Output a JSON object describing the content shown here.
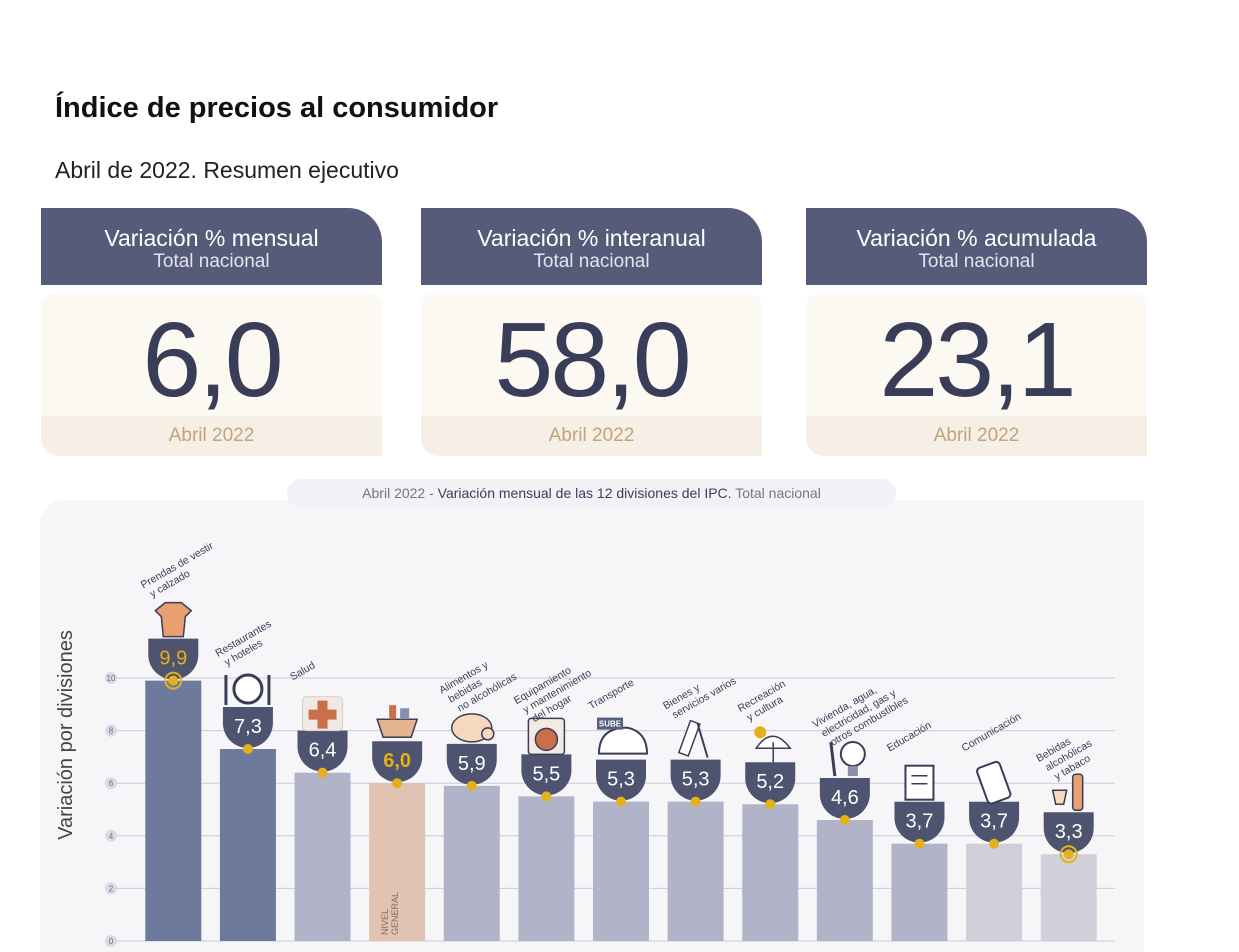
{
  "header": {
    "title": "Índice de precios al consumidor",
    "subtitle": "Abril de 2022. Resumen ejecutivo"
  },
  "cards": [
    {
      "label": "Variación % mensual",
      "sublabel": "Total nacional",
      "value": "6,0",
      "period": "Abril 2022"
    },
    {
      "label": "Variación % interanual",
      "sublabel": "Total nacional",
      "value": "58,0",
      "period": "Abril 2022"
    },
    {
      "label": "Variación % acumulada",
      "sublabel": "Total nacional",
      "value": "23,1",
      "period": "Abril 2022"
    }
  ],
  "chart_caption": {
    "prefix": "Abril 2022 - ",
    "bold": "Variación mensual de las 12 divisiones del IPC.",
    "suffix": " Total nacional"
  },
  "colors": {
    "header_bg": "#555b79",
    "value_text": "#3a3d58",
    "dot": "#e5b11b",
    "bar_dark": "#6e7a9c",
    "bar_mid": "#b1b4c8",
    "bar_light": "#cfd0da",
    "bar_general": "#e0c3b3"
  },
  "chart_data": {
    "type": "bar",
    "ylabel": "Variación por divisiones",
    "ylim": [
      0,
      10
    ],
    "yticks": [
      "0",
      "2",
      "4",
      "6",
      "8",
      "10"
    ],
    "categories": [
      "Prendas de vestir y calzado",
      "Restaurantes y hoteles",
      "Salud",
      "Nivel general",
      "Alimentos y bebidas no alcohólicas",
      "Equipamiento y mantenimiento del hogar",
      "Transporte",
      "Bienes y servicios varios",
      "Recreación y cultura",
      "Vivienda, agua, electricidad, gas y otros combustibles",
      "Educación",
      "Comunicación",
      "Bebidas alcohólicas y tabaco"
    ],
    "values": [
      9.9,
      7.3,
      6.4,
      6.0,
      5.9,
      5.5,
      5.3,
      5.3,
      5.2,
      4.6,
      3.7,
      3.7,
      3.3
    ],
    "value_labels": [
      "9,9",
      "7,3",
      "6,4",
      "6,0",
      "5,9",
      "5,5",
      "5,3",
      "5,3",
      "5,2",
      "4,6",
      "3,7",
      "3,7",
      "3,3"
    ],
    "category_labels": [
      [
        "Prendas de vestir",
        "y calzado"
      ],
      [
        "Restaurantes",
        "y hoteles"
      ],
      [
        "Salud"
      ],
      [
        "NIVEL",
        "GENERAL"
      ],
      [
        "Alimentos y",
        "bebidas",
        "no alcohólicas"
      ],
      [
        "Equipamiento",
        "y mantenimiento",
        "del hogar"
      ],
      [
        "Transporte"
      ],
      [
        "Bienes y",
        "servicios varios"
      ],
      [
        "Recreación",
        "y cultura"
      ],
      [
        "Vivienda, agua,",
        "electricidad, gas y",
        "otros combustibles"
      ],
      [
        "Educación"
      ],
      [
        "Comunicación"
      ],
      [
        "Bebidas",
        "alcohólicas",
        "y tabaco"
      ]
    ],
    "icons": [
      "shirt-icon",
      "plate-cutlery-icon",
      "medical-cross-icon",
      "basket-icon",
      "chicken-icon",
      "washing-machine-icon",
      "subway-train-icon",
      "comb-scissors-icon",
      "umbrella-sun-icon",
      "bulb-tools-icon",
      "notebook-icon",
      "smartphone-icon",
      "bottle-glass-icon"
    ],
    "icon_text": {
      "6": "SUBE"
    },
    "bar_tone": [
      "dark",
      "dark",
      "mid",
      "general",
      "mid",
      "mid",
      "mid",
      "mid",
      "mid",
      "mid",
      "mid",
      "light",
      "light"
    ],
    "ring_markers": [
      0,
      12
    ]
  }
}
